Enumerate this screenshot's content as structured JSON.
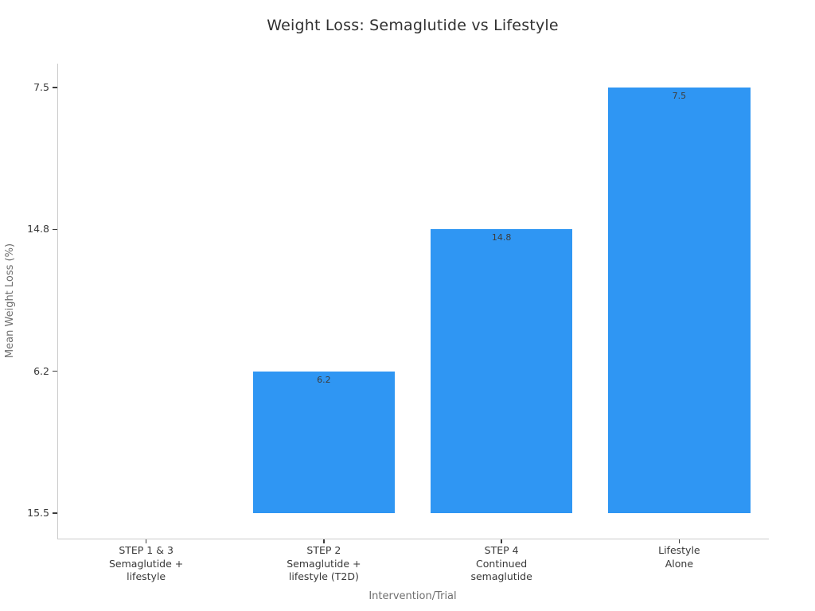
{
  "chart_data": {
    "type": "bar",
    "title": "Weight Loss: Semaglutide vs Lifestyle",
    "xlabel": "Intervention/Trial",
    "ylabel": "Mean Weight Loss (%)",
    "categories": [
      [
        "STEP 1 & 3",
        "Semaglutide +",
        "lifestyle"
      ],
      [
        "STEP 2",
        "Semaglutide +",
        "lifestyle (T2D)"
      ],
      [
        "STEP 4",
        "Continued",
        "semaglutide"
      ],
      [
        "Lifestyle",
        "Alone"
      ]
    ],
    "values": [
      "15.5",
      "6.2",
      "14.8",
      "7.5"
    ],
    "y_ticks_bottom_to_top": [
      "15.5",
      "6.2",
      "14.8",
      "7.5"
    ],
    "note": "y-axis is categorical (values plotted as strings): bar heights follow tick order 0-3, so the 15.5 bar has zero height and shows no label; visible bar labels are 6.2, 14.8 and 7.5 inside the bar tops",
    "legend": null,
    "grid": "off",
    "colors": {
      "bar": "#2F96F3",
      "spine": "#cbcbcb",
      "tick_mark": "#3b3b3b",
      "tick_label": "#383838",
      "bar_label": "#3d3d3d",
      "axis_title": "#6f6f6f",
      "title": "#313131",
      "background": "#ffffff"
    }
  }
}
